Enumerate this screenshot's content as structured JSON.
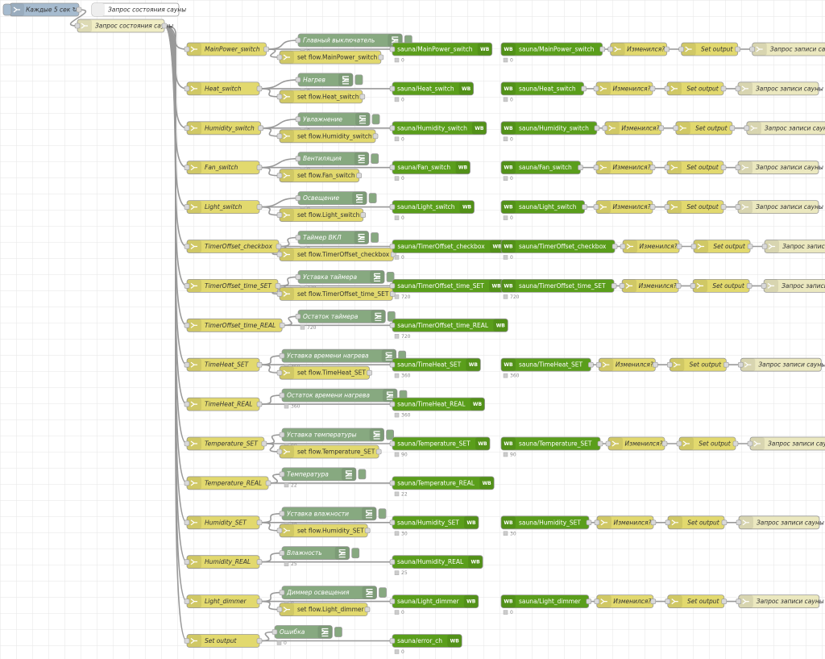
{
  "inject": "Каждые 5 сек ↻",
  "comment": "Запрос состояния сауны",
  "function": "Запрос состояния сауны",
  "mqtt_badge": "WB",
  "rows": [
    {
      "switch": "MainPower_switch",
      "debug": {
        "label": "Главный выключатель",
        "status": "0"
      },
      "change": "set flow.MainPower_switch",
      "mqtt_out": {
        "topic": "sauna/MainPower_switch",
        "status": "0"
      },
      "mqtt_in": {
        "topic": "sauna/MainPower_switch",
        "status": "0"
      },
      "chain": [
        "Изменился?",
        "Set output",
        "Запрос записи сауны"
      ]
    },
    {
      "switch": "Heat_switch",
      "debug": {
        "label": "Нагрев",
        "status": "0"
      },
      "change": "set flow.Heat_switch",
      "mqtt_out": {
        "topic": "sauna/Heat_switch",
        "status": "0"
      },
      "mqtt_in": {
        "topic": "sauna/Heat_switch",
        "status": "0"
      },
      "chain": [
        "Изменился?",
        "Set output",
        "Запрос записи сауны"
      ]
    },
    {
      "switch": "Humidity_switch",
      "debug": {
        "label": "Увлажнение",
        "status": "0"
      },
      "change": "set flow.Humidity_switch",
      "mqtt_out": {
        "topic": "sauna/Humidity_switch",
        "status": "0"
      },
      "mqtt_in": {
        "topic": "sauna/Humidity_switch",
        "status": "0"
      },
      "chain": [
        "Изменился?",
        "Set output",
        "Запрос записи сауны"
      ]
    },
    {
      "switch": "Fan_switch",
      "debug": {
        "label": "Вентиляция",
        "status": "0"
      },
      "change": "set flow.Fan_switch",
      "mqtt_out": {
        "topic": "sauna/Fan_switch",
        "status": "0"
      },
      "mqtt_in": {
        "topic": "sauna/Fan_switch",
        "status": "0"
      },
      "chain": [
        "Изменился?",
        "Set output",
        "Запрос записи сауны"
      ]
    },
    {
      "switch": "Light_switch",
      "debug": {
        "label": "Освещение",
        "status": "0"
      },
      "change": "set flow.Light_switch",
      "mqtt_out": {
        "topic": "sauna/Light_switch",
        "status": "0"
      },
      "mqtt_in": {
        "topic": "sauna/Light_switch",
        "status": "0"
      },
      "chain": [
        "Изменился?",
        "Set output",
        "Запрос записи сауны"
      ]
    },
    {
      "switch": "TimerOffset_checkbox",
      "debug": {
        "label": "Таймер ВКЛ",
        "status": "0"
      },
      "change": "set flow.TimerOffset_checkbox",
      "mqtt_out": {
        "topic": "sauna/TimerOffset_checkbox",
        "status": "0"
      },
      "mqtt_in": {
        "topic": "sauna/TimerOffset_checkbox",
        "status": "0"
      },
      "chain": [
        "Изменился?",
        "Set output",
        "Запрос записи сауны"
      ]
    },
    {
      "switch": "TimerOffset_time_SET",
      "debug": {
        "label": "Уставка таймера",
        "status": "720"
      },
      "change": "set flow.TimerOffset_time_SET",
      "mqtt_out": {
        "topic": "sauna/TimerOffset_time_SET",
        "status": "720"
      },
      "mqtt_in": {
        "topic": "sauna/TimerOffset_time_SET",
        "status": "720"
      },
      "chain": [
        "Изменился?",
        "Set output",
        "Запрос записи сауны"
      ]
    },
    {
      "switch": "TimerOffset_time_REAL",
      "debug": {
        "label": "Остаток таймера",
        "status": "720"
      },
      "mqtt_out": {
        "topic": "sauna/TimerOffset_time_REAL",
        "status": "720"
      }
    },
    {
      "switch": "TimeHeat_SET",
      "debug": {
        "label": "Уставка времени нагрева",
        "status": "360"
      },
      "change": "set flow.TimeHeat_SET",
      "mqtt_out": {
        "topic": "sauna/TimeHeat_SET",
        "status": "360"
      },
      "mqtt_in": {
        "topic": "sauna/TimeHeat_SET",
        "status": "360"
      },
      "chain": [
        "Изменился?",
        "Set output",
        "Запрос записи сауны"
      ]
    },
    {
      "switch": "TimeHeat_REAL",
      "debug": {
        "label": "Остаток времени нагрева",
        "status": "360"
      },
      "mqtt_out": {
        "topic": "sauna/TimeHeat_REAL",
        "status": "360"
      }
    },
    {
      "switch": "Temperature_SET",
      "debug": {
        "label": "Уставка температуры",
        "status": "90"
      },
      "change": "set flow.Temperature_SET",
      "mqtt_out": {
        "topic": "sauna/Temperature_SET",
        "status": "90"
      },
      "mqtt_in": {
        "topic": "sauna/Temperature_SET",
        "status": "90"
      },
      "chain": [
        "Изменился?",
        "Set output",
        "Запрос записи сауны"
      ]
    },
    {
      "switch": "Temperature_REAL",
      "debug": {
        "label": "Температура",
        "status": "22"
      },
      "mqtt_out": {
        "topic": "sauna/Temperature_REAL",
        "status": "22"
      }
    },
    {
      "switch": "Humidity_SET",
      "debug": {
        "label": "Уставка влажности",
        "status": "30"
      },
      "change": "set flow.Humidity_SET",
      "mqtt_out": {
        "topic": "sauna/Humidity_SET",
        "status": "30"
      },
      "mqtt_in": {
        "topic": "sauna/Humidity_SET",
        "status": "30"
      },
      "chain": [
        "Изменился?",
        "Set output",
        "Запрос записи сауны"
      ]
    },
    {
      "switch": "Humidity_REAL",
      "debug": {
        "label": "Влажность",
        "status": "25"
      },
      "mqtt_out": {
        "topic": "sauna/Humidity_REAL",
        "status": "25"
      }
    },
    {
      "switch": "Light_dimmer",
      "debug": {
        "label": "Диммер освещения",
        "status": "0"
      },
      "change": "set flow.Light_dimmer",
      "mqtt_out": {
        "topic": "sauna/Light_dimmer",
        "status": "0"
      },
      "mqtt_in": {
        "topic": "sauna/Light_dimmer",
        "status": "0"
      },
      "chain": [
        "Изменился?",
        "Set output",
        "Запрос записи сауны"
      ]
    },
    {
      "switch": "Set output",
      "debug": {
        "label": "Ошибка",
        "status": "0"
      },
      "mqtt_out": {
        "topic": "sauna/error_ch",
        "status": "0"
      }
    }
  ]
}
